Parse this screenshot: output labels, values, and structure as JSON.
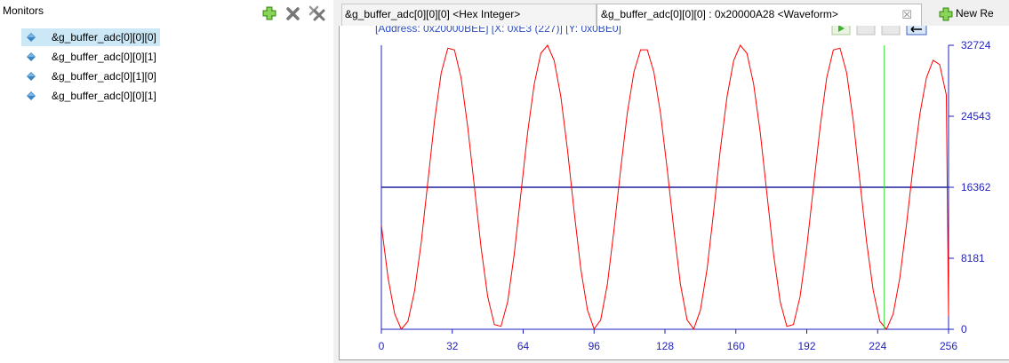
{
  "monitors": {
    "title": "Monitors",
    "toolbar": {
      "add_icon": "plus-icon",
      "remove_icon": "remove-icon",
      "remove_all_icon": "remove-all-icon"
    },
    "items": [
      {
        "label": "&g_buffer_adc[0][0][0]",
        "selected": true
      },
      {
        "label": "&g_buffer_adc[0][0][1]",
        "selected": false
      },
      {
        "label": "&g_buffer_adc[0][1][0]",
        "selected": false
      },
      {
        "label": "&g_buffer_adc[0][0][1]",
        "selected": false
      }
    ]
  },
  "tabs": [
    {
      "label": "&g_buffer_adc[0][0][0] <Hex Integer>"
    },
    {
      "label": "&g_buffer_adc[0][0][0] : 0x20000A28 <Waveform>",
      "active": true
    },
    {
      "label": "New Re"
    }
  ],
  "waveform": {
    "info_text": "[Address: 0x20000BEE]   [X: 0xE3 (227)]   [Y: 0x0BE0]",
    "colors": {
      "signal": "#ff0000",
      "axis": "#1f1fbf",
      "marker": "#33dd33",
      "reference": "#1f1f9f"
    }
  },
  "chart_data": {
    "type": "line",
    "xlim": [
      0,
      256
    ],
    "ylim": [
      0,
      32724
    ],
    "x_ticks": [
      "0",
      "32",
      "64",
      "96",
      "128",
      "160",
      "192",
      "224",
      "256"
    ],
    "y_ticks": [
      "0",
      "8181",
      "16362",
      "24543",
      "32724"
    ],
    "series": [
      {
        "x": [
          0,
          3,
          6,
          9,
          12,
          15,
          18,
          21,
          24,
          27,
          30,
          33,
          36,
          39,
          42,
          45,
          48,
          51,
          54,
          57,
          60,
          63,
          66,
          69,
          72,
          75,
          78,
          81,
          84,
          87,
          90,
          93,
          96,
          99,
          102,
          105,
          108,
          111,
          114,
          117,
          120,
          123,
          126,
          129,
          132,
          135,
          138,
          141,
          144,
          147,
          150,
          153,
          156,
          159,
          162,
          165,
          168,
          171,
          174,
          177,
          180,
          183,
          186,
          189,
          192,
          195,
          198,
          201,
          204,
          207,
          210,
          213,
          216,
          219,
          222,
          225,
          228,
          231,
          234,
          237,
          240,
          243,
          246,
          249,
          252,
          255,
          256
        ],
        "y": [
          12001,
          5933,
          1766,
          0,
          925,
          4440,
          10064,
          17028,
          24027,
          29543,
          32386,
          32181,
          28965,
          23260,
          16362,
          9464,
          3759,
          543,
          338,
          3181,
          8697,
          15696,
          22660,
          28284,
          31799,
          32724,
          30958,
          26791,
          20723,
          13589,
          6969,
          2230,
          30,
          1077,
          5171,
          11493,
          18460,
          24885,
          29643,
          32203,
          32203,
          29643,
          24885,
          18460,
          11493,
          5171,
          1077,
          30,
          2230,
          6969,
          13589,
          20723,
          26791,
          30958,
          32724,
          31799,
          28284,
          22660,
          15696,
          8697,
          3181,
          338,
          543,
          3759,
          9464,
          16362,
          23260,
          28965,
          32181,
          32386,
          29543,
          24027,
          17028,
          10064,
          4440,
          925,
          0,
          1766,
          5933,
          12001,
          18723,
          24715,
          28966,
          31000,
          30500,
          27000,
          1500
        ]
      }
    ],
    "reference_line_y": 16362,
    "cursor_x": 227
  }
}
